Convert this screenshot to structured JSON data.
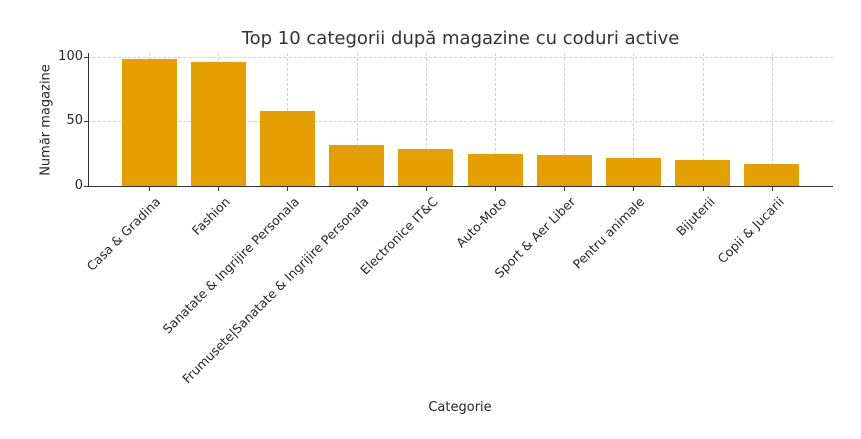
{
  "chart_data": {
    "type": "bar",
    "title": "Top 10 categorii după magazine cu coduri active",
    "xlabel": "Categorie",
    "ylabel": "Număr magazine",
    "ylim": [
      0,
      103
    ],
    "yticks": [
      0,
      50,
      100
    ],
    "grid": true,
    "bar_color": "#E69F00",
    "categories": [
      "Casa & Gradina",
      "Fashion",
      "Sanatate & Ingrijire Personala",
      "Frumusete|Sanatate & Ingrijire Personala",
      "Electronice IT&C",
      "Auto-Moto",
      "Sport & Aer Liber",
      "Pentru animale",
      "Bijuterii",
      "Copii & Jucarii"
    ],
    "values": [
      98,
      96,
      58,
      32,
      29,
      25,
      24,
      22,
      20,
      17
    ]
  }
}
